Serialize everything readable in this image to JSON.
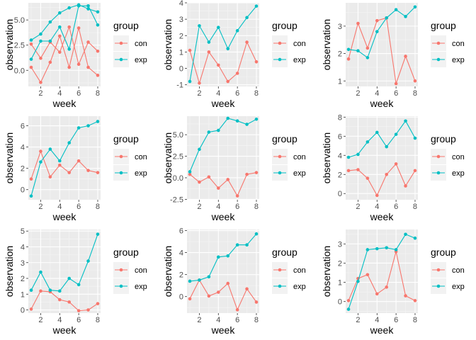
{
  "colors": {
    "con": "#F8766D",
    "exp": "#00BFC4",
    "panel_bg": "#EBEBEB",
    "grid_major": "#FFFFFF",
    "grid_minor": "#F5F5F5",
    "tick_text": "#4D4D4D",
    "axis_title": "#000000"
  },
  "chart_data": [
    {
      "type": "line",
      "title": "",
      "xlabel": "week",
      "ylabel": "observation",
      "legend": {
        "title": "group",
        "position": "right",
        "entries": [
          "con",
          "exp"
        ]
      },
      "xlim": [
        0.7,
        8.3
      ],
      "ylim": [
        -1.6,
        6.7
      ],
      "x_ticks": [
        2,
        4,
        6,
        8
      ],
      "y_ticks": [
        0.0,
        2.5,
        5.0
      ],
      "y_tick_labels": [
        "0.0",
        "2.5",
        "5.0"
      ],
      "grid": true,
      "x": [
        1,
        2,
        3,
        4,
        5,
        6,
        7,
        8
      ],
      "series": [
        {
          "name": "con",
          "values": [
            0.3,
            -1.2,
            0.8,
            3.4,
            0.3,
            4.2,
            0.3,
            -0.5
          ]
        },
        {
          "name": "exp",
          "values": [
            3.0,
            3.6,
            4.8,
            5.7,
            6.2,
            6.5,
            6.1,
            5.8
          ]
        },
        {
          "name": "con",
          "values": [
            2.6,
            1.2,
            2.8,
            1.8,
            4.3,
            0.6,
            2.8,
            1.9
          ]
        },
        {
          "name": "exp",
          "values": [
            1.1,
            2.9,
            2.9,
            4.3,
            2.1,
            6.4,
            6.4,
            4.5
          ]
        }
      ]
    },
    {
      "type": "line",
      "title": "",
      "xlabel": "week",
      "ylabel": "observation",
      "legend": {
        "title": "group",
        "position": "right",
        "entries": [
          "con",
          "exp"
        ]
      },
      "xlim": [
        0.7,
        8.3
      ],
      "ylim": [
        -1.1,
        4.0
      ],
      "x_ticks": [
        2,
        4,
        6,
        8
      ],
      "y_ticks": [
        -1,
        0,
        1,
        2,
        3,
        4
      ],
      "y_tick_labels": [
        "-1",
        "0",
        "1",
        "2",
        "3",
        "4"
      ],
      "grid": true,
      "x": [
        1,
        2,
        3,
        4,
        5,
        6,
        7,
        8
      ],
      "series": [
        {
          "name": "con",
          "values": [
            1.1,
            -0.9,
            1.0,
            0.2,
            -0.8,
            -0.3,
            1.6,
            0.4
          ]
        },
        {
          "name": "exp",
          "values": [
            -0.8,
            2.6,
            1.6,
            2.5,
            1.2,
            2.3,
            3.1,
            3.8
          ]
        }
      ]
    },
    {
      "type": "line",
      "title": "",
      "xlabel": "week",
      "ylabel": "observation",
      "legend": {
        "title": "group",
        "position": "right",
        "entries": [
          "con",
          "exp"
        ]
      },
      "xlim": [
        0.7,
        8.3
      ],
      "ylim": [
        0.8,
        3.85
      ],
      "x_ticks": [
        2,
        4,
        6,
        8
      ],
      "y_ticks": [
        1,
        2,
        3
      ],
      "y_tick_labels": [
        "1",
        "2",
        "3"
      ],
      "grid": true,
      "x": [
        1,
        2,
        3,
        4,
        5,
        6,
        7,
        8
      ],
      "series": [
        {
          "name": "con",
          "values": [
            1.8,
            3.1,
            2.2,
            3.2,
            3.3,
            0.9,
            1.9,
            1.0
          ]
        },
        {
          "name": "exp",
          "values": [
            2.15,
            2.1,
            1.85,
            2.8,
            3.3,
            3.6,
            3.35,
            3.7
          ]
        }
      ]
    },
    {
      "type": "line",
      "title": "",
      "xlabel": "week",
      "ylabel": "observation",
      "legend": {
        "title": "group",
        "position": "right",
        "entries": [
          "con",
          "exp"
        ]
      },
      "xlim": [
        0.7,
        8.3
      ],
      "ylim": [
        -0.95,
        6.9
      ],
      "x_ticks": [
        2,
        4,
        6,
        8
      ],
      "y_ticks": [
        0,
        2,
        4,
        6
      ],
      "y_tick_labels": [
        "0",
        "2",
        "4",
        "6"
      ],
      "grid": true,
      "x": [
        1,
        2,
        3,
        4,
        5,
        6,
        7,
        8
      ],
      "series": [
        {
          "name": "con",
          "values": [
            1.0,
            3.6,
            1.2,
            2.3,
            1.6,
            2.7,
            1.8,
            1.6
          ]
        },
        {
          "name": "exp",
          "values": [
            -0.6,
            2.6,
            3.8,
            2.7,
            4.4,
            5.8,
            6.0,
            6.4
          ]
        }
      ]
    },
    {
      "type": "line",
      "title": "",
      "xlabel": "week",
      "ylabel": "observation",
      "legend": {
        "title": "group",
        "position": "right",
        "entries": [
          "con",
          "exp"
        ]
      },
      "xlim": [
        0.7,
        8.3
      ],
      "ylim": [
        -2.55,
        7.15
      ],
      "x_ticks": [
        2,
        4,
        6,
        8
      ],
      "y_ticks": [
        -2.5,
        0.0,
        2.5,
        5.0
      ],
      "y_tick_labels": [
        "-2.5",
        "0.0",
        "2.5",
        "5.0"
      ],
      "grid": true,
      "x": [
        1,
        2,
        3,
        4,
        5,
        6,
        7,
        8
      ],
      "series": [
        {
          "name": "con",
          "values": [
            0.4,
            -0.5,
            0.1,
            -1.2,
            -0.2,
            -2.1,
            0.4,
            0.6
          ]
        },
        {
          "name": "exp",
          "values": [
            0.7,
            3.3,
            5.3,
            5.5,
            6.9,
            6.6,
            6.2,
            6.8
          ]
        }
      ]
    },
    {
      "type": "line",
      "title": "",
      "xlabel": "week",
      "ylabel": "observation",
      "legend": {
        "title": "group",
        "position": "right",
        "entries": [
          "con",
          "exp"
        ]
      },
      "xlim": [
        0.7,
        8.3
      ],
      "ylim": [
        -0.65,
        8.1
      ],
      "x_ticks": [
        2,
        4,
        6,
        8
      ],
      "y_ticks": [
        0,
        2,
        4,
        6,
        8
      ],
      "y_tick_labels": [
        "0",
        "2",
        "4",
        "6",
        "8"
      ],
      "grid": true,
      "x": [
        1,
        2,
        3,
        4,
        5,
        6,
        7,
        8
      ],
      "series": [
        {
          "name": "con",
          "values": [
            2.4,
            2.5,
            1.6,
            -0.2,
            2.0,
            3.1,
            0.8,
            2.4
          ]
        },
        {
          "name": "exp",
          "values": [
            3.8,
            4.1,
            5.4,
            6.4,
            4.9,
            6.2,
            7.6,
            5.8
          ]
        }
      ]
    },
    {
      "type": "line",
      "title": "",
      "xlabel": "week",
      "ylabel": "observation",
      "legend": {
        "title": "group",
        "position": "right",
        "entries": [
          "con",
          "exp"
        ]
      },
      "xlim": [
        0.7,
        8.3
      ],
      "ylim": [
        -0.2,
        5.1
      ],
      "x_ticks": [
        2,
        4,
        6,
        8
      ],
      "y_ticks": [
        0,
        1,
        2,
        3,
        4,
        5
      ],
      "y_tick_labels": [
        "0",
        "1",
        "2",
        "3",
        "4",
        "5"
      ],
      "grid": true,
      "x": [
        1,
        2,
        3,
        4,
        5,
        6,
        7,
        8
      ],
      "series": [
        {
          "name": "con",
          "values": [
            0.05,
            1.2,
            1.15,
            0.65,
            0.5,
            -0.05,
            0.0,
            0.4
          ]
        },
        {
          "name": "exp",
          "values": [
            1.25,
            2.4,
            1.25,
            1.2,
            2.0,
            1.6,
            3.1,
            4.8
          ]
        }
      ]
    },
    {
      "type": "line",
      "title": "",
      "xlabel": "week",
      "ylabel": "observation",
      "legend": {
        "title": "group",
        "position": "right",
        "entries": [
          "con",
          "exp"
        ]
      },
      "xlim": [
        0.7,
        8.3
      ],
      "ylim": [
        -1.5,
        6.1
      ],
      "x_ticks": [
        2,
        4,
        6,
        8
      ],
      "y_ticks": [
        0,
        2,
        4,
        6
      ],
      "y_tick_labels": [
        "0",
        "2",
        "4",
        "6"
      ],
      "grid": true,
      "x": [
        1,
        2,
        3,
        4,
        5,
        6,
        7,
        8
      ],
      "series": [
        {
          "name": "con",
          "values": [
            -0.2,
            1.5,
            0.05,
            0.4,
            1.2,
            -1.2,
            0.7,
            -0.5
          ]
        },
        {
          "name": "exp",
          "values": [
            1.4,
            1.5,
            1.8,
            3.6,
            3.7,
            4.7,
            4.7,
            5.7
          ]
        }
      ]
    },
    {
      "type": "line",
      "title": "",
      "xlabel": "week",
      "ylabel": "observation",
      "legend": {
        "title": "group",
        "position": "right",
        "entries": [
          "con",
          "exp"
        ]
      },
      "xlim": [
        0.7,
        8.3
      ],
      "ylim": [
        -0.6,
        3.75
      ],
      "x_ticks": [
        2,
        4,
        6,
        8
      ],
      "y_ticks": [
        0,
        1,
        2,
        3
      ],
      "y_tick_labels": [
        "0",
        "1",
        "2",
        "3"
      ],
      "grid": true,
      "x": [
        1,
        2,
        3,
        4,
        5,
        6,
        7,
        8
      ],
      "series": [
        {
          "name": "con",
          "values": [
            0.05,
            1.2,
            1.4,
            0.4,
            0.75,
            2.6,
            0.3,
            0.05
          ]
        },
        {
          "name": "exp",
          "values": [
            -0.4,
            1.05,
            2.7,
            2.75,
            2.8,
            2.7,
            3.5,
            3.3
          ]
        }
      ]
    }
  ]
}
